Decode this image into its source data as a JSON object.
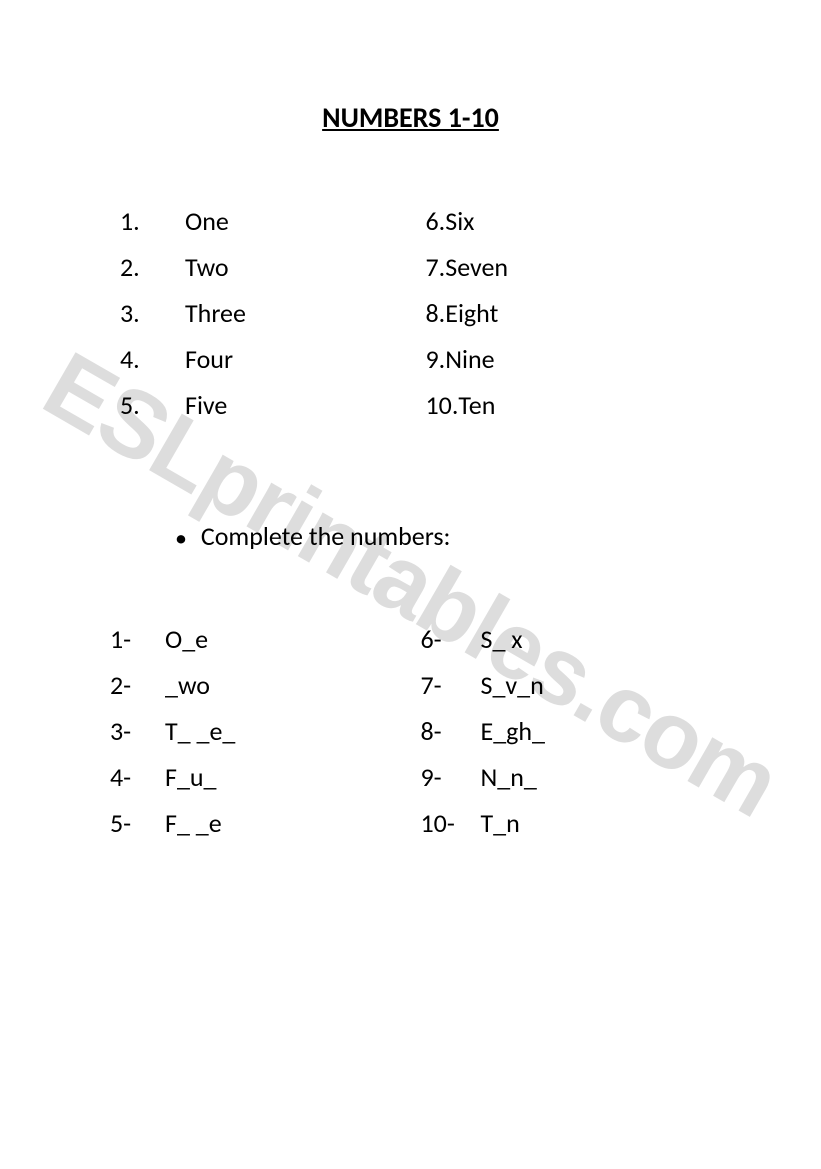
{
  "title": "NUMBERS 1-10",
  "watermark": "ESLprintables.com",
  "numbers": {
    "left": [
      {
        "idx": "1.",
        "word": "One"
      },
      {
        "idx": "2.",
        "word": "Two"
      },
      {
        "idx": "3.",
        "word": "Three"
      },
      {
        "idx": "4.",
        "word": "Four"
      },
      {
        "idx": "5.",
        "word": "Five"
      }
    ],
    "right": [
      {
        "idx": "6. ",
        "word": "Six"
      },
      {
        "idx": "7. ",
        "word": "Seven"
      },
      {
        "idx": "8. ",
        "word": "Eight"
      },
      {
        "idx": "9. ",
        "word": "Nine"
      },
      {
        "idx": "10. ",
        "word": "Ten"
      }
    ]
  },
  "instruction_bullet": "•",
  "instruction": "Complete the numbers:",
  "exercise": {
    "left": [
      {
        "idx": "1-",
        "word": "O_e"
      },
      {
        "idx": "2-",
        "word": "_wo"
      },
      {
        "idx": "3-",
        "word": "T_ _e_"
      },
      {
        "idx": "4-",
        "word": "F_u_"
      },
      {
        "idx": "5-",
        "word": "F_ _e"
      }
    ],
    "right": [
      {
        "idx": "6-",
        "word": "S_ x"
      },
      {
        "idx": "7-",
        "word": "S_v_n"
      },
      {
        "idx": "8-",
        "word": "E_gh_"
      },
      {
        "idx": "9-",
        "word": "N_n_"
      },
      {
        "idx": "10-",
        "word": "T_n"
      }
    ]
  },
  "colors": {
    "text": "#000000",
    "background": "#ffffff",
    "watermark": "rgba(180,180,180,0.45)"
  },
  "typography": {
    "title_fontsize": 28,
    "body_fontsize": 26,
    "watermark_fontsize": 95,
    "font_family": "Calibri, Arial, sans-serif"
  }
}
